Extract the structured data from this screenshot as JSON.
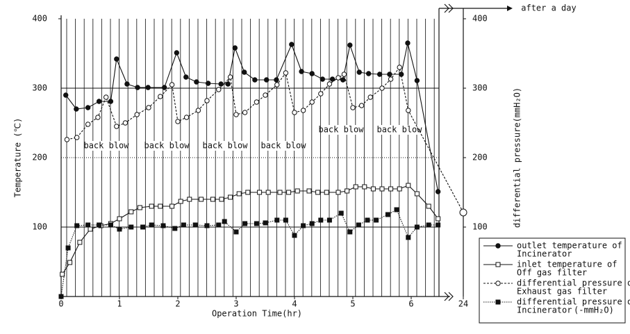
{
  "chart_data": {
    "type": "line",
    "x_label": "Operation Time(hr)",
    "y_label": "Temperature (℃)",
    "y2_label": "differential pressure(mmH₂O)",
    "annotations": [
      "back blow",
      "back blow",
      "back blow",
      "back blow",
      "back blow",
      "back blow",
      "after a day"
    ],
    "legend_unit": "(-mmH₂O)",
    "xlim": [
      0,
      24
    ],
    "xticks": [
      0,
      1,
      2,
      3,
      4,
      5,
      6,
      24
    ],
    "ylim": [
      0,
      400
    ],
    "yticks": [
      100,
      200,
      300,
      400
    ],
    "y2lim": [
      0,
      400
    ],
    "y2ticks": [
      100,
      200,
      300,
      400
    ],
    "legend": "lower right",
    "series": [
      {
        "name": [
          "outlet temperature of",
          "Incinerator"
        ],
        "marker": "filled-circle",
        "dash": "solid",
        "color": "#111111",
        "x": [
          0.08,
          0.26,
          0.46,
          0.65,
          0.85,
          0.95,
          1.13,
          1.31,
          1.49,
          1.77,
          1.98,
          2.14,
          2.32,
          2.52,
          2.74,
          2.86,
          2.98,
          3.14,
          3.32,
          3.52,
          3.69,
          3.95,
          4.12,
          4.3,
          4.48,
          4.65,
          4.83,
          4.95,
          5.11,
          5.27,
          5.46,
          5.63,
          5.83,
          5.94,
          6.1,
          6.46
        ],
        "values": [
          290,
          270,
          272,
          281,
          281,
          342,
          306,
          301,
          301,
          301,
          351,
          316,
          309,
          307,
          306,
          306,
          358,
          323,
          312,
          312,
          312,
          363,
          324,
          321,
          313,
          313,
          312,
          362,
          323,
          321,
          320,
          320,
          320,
          365,
          311,
          151
        ]
      },
      {
        "name": [
          "inlet temperature of",
          "Off gas filter"
        ],
        "marker": "open-square",
        "dash": "solid",
        "color": "#111111",
        "x": [
          0.02,
          0.15,
          0.32,
          0.5,
          0.68,
          0.85,
          1.0,
          1.2,
          1.35,
          1.55,
          1.7,
          1.9,
          2.05,
          2.2,
          2.4,
          2.6,
          2.75,
          2.9,
          3.05,
          3.2,
          3.4,
          3.55,
          3.75,
          3.9,
          4.05,
          4.25,
          4.4,
          4.55,
          4.75,
          4.9,
          5.05,
          5.2,
          5.35,
          5.5,
          5.65,
          5.8,
          5.95,
          6.1,
          6.3,
          6.46
        ],
        "values": [
          32,
          49,
          78,
          97,
          102,
          105,
          112,
          122,
          128,
          130,
          130,
          130,
          137,
          140,
          140,
          140,
          140,
          143,
          148,
          150,
          150,
          150,
          150,
          150,
          152,
          152,
          150,
          150,
          150,
          152,
          158,
          158,
          155,
          155,
          155,
          155,
          160,
          148,
          130,
          112
        ]
      },
      {
        "name": [
          "differential pressure of",
          "Exhaust gas filter"
        ],
        "marker": "open-circle",
        "dash": "dashed",
        "color": "#111111",
        "axis": "y2",
        "x": [
          0.1,
          0.27,
          0.46,
          0.63,
          0.77,
          0.95,
          1.1,
          1.3,
          1.5,
          1.7,
          1.9,
          2.0,
          2.15,
          2.35,
          2.5,
          2.7,
          2.9,
          3.0,
          3.15,
          3.35,
          3.5,
          3.7,
          3.85,
          4.0,
          4.15,
          4.3,
          4.45,
          4.6,
          4.75,
          4.85,
          5.0,
          5.15,
          5.3,
          5.5,
          5.65,
          5.8,
          5.95,
          24
        ],
        "values": [
          226,
          229,
          248,
          258,
          287,
          245,
          250,
          262,
          272,
          288,
          305,
          252,
          258,
          268,
          282,
          298,
          316,
          262,
          265,
          280,
          290,
          305,
          322,
          265,
          268,
          280,
          292,
          306,
          315,
          320,
          272,
          275,
          287,
          300,
          313,
          330,
          268,
          121
        ]
      },
      {
        "name": [
          "differential pressure of",
          "Incinerator"
        ],
        "marker": "filled-square",
        "dash": "dotted",
        "color": "#111111",
        "axis": "y2",
        "x": [
          0,
          0.12,
          0.27,
          0.46,
          0.65,
          0.85,
          1.0,
          1.2,
          1.4,
          1.55,
          1.75,
          1.95,
          2.1,
          2.3,
          2.5,
          2.7,
          2.8,
          3.0,
          3.15,
          3.35,
          3.5,
          3.7,
          3.85,
          4.0,
          4.15,
          4.3,
          4.45,
          4.6,
          4.8,
          4.95,
          5.1,
          5.25,
          5.4,
          5.6,
          5.75,
          5.95,
          6.1,
          6.3,
          6.46
        ],
        "values": [
          0,
          70,
          102,
          103,
          103,
          103,
          97,
          100,
          100,
          103,
          102,
          98,
          103,
          103,
          102,
          103,
          108,
          93,
          105,
          105,
          106,
          110,
          110,
          88,
          102,
          105,
          110,
          110,
          120,
          93,
          103,
          110,
          110,
          118,
          125,
          85,
          100,
          103,
          103
        ]
      }
    ]
  }
}
